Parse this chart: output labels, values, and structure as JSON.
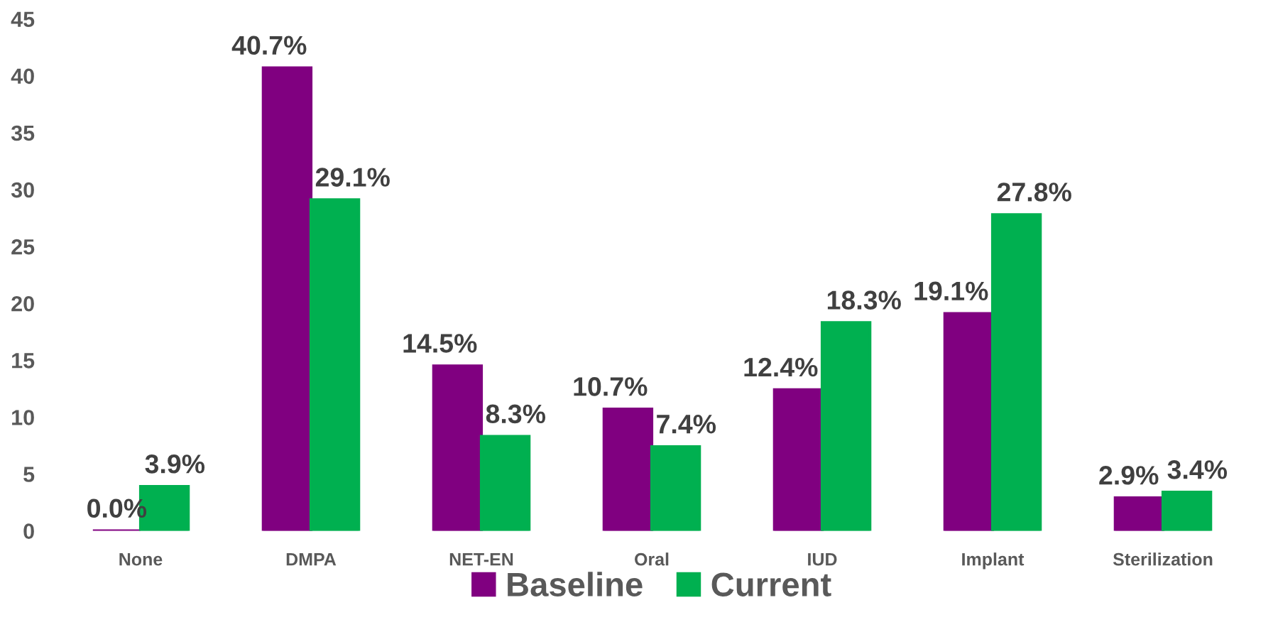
{
  "chart_data": {
    "type": "bar",
    "categories": [
      "None",
      "DMPA",
      "NET-EN",
      "Oral",
      "IUD",
      "Implant",
      "Sterilization"
    ],
    "series": [
      {
        "name": "Baseline",
        "color": "#800080",
        "values": [
          0.0,
          40.7,
          14.5,
          10.7,
          12.4,
          19.1,
          2.9
        ],
        "value_labels": [
          "0.0%",
          "40.7%",
          "14.5%",
          "10.7%",
          "12.4%",
          "19.1%",
          "2.9%"
        ]
      },
      {
        "name": "Current",
        "color": "#00b050",
        "values": [
          3.9,
          29.1,
          8.3,
          7.4,
          18.3,
          27.8,
          3.4
        ],
        "value_labels": [
          "3.9%",
          "29.1%",
          "8.3%",
          "7.4%",
          "18.3%",
          "27.8%",
          "3.4%"
        ]
      }
    ],
    "ylim": [
      0,
      45
    ],
    "yticks": [
      0,
      5,
      10,
      15,
      20,
      25,
      30,
      35,
      40,
      45
    ],
    "grid": false,
    "legend": "bottom"
  }
}
